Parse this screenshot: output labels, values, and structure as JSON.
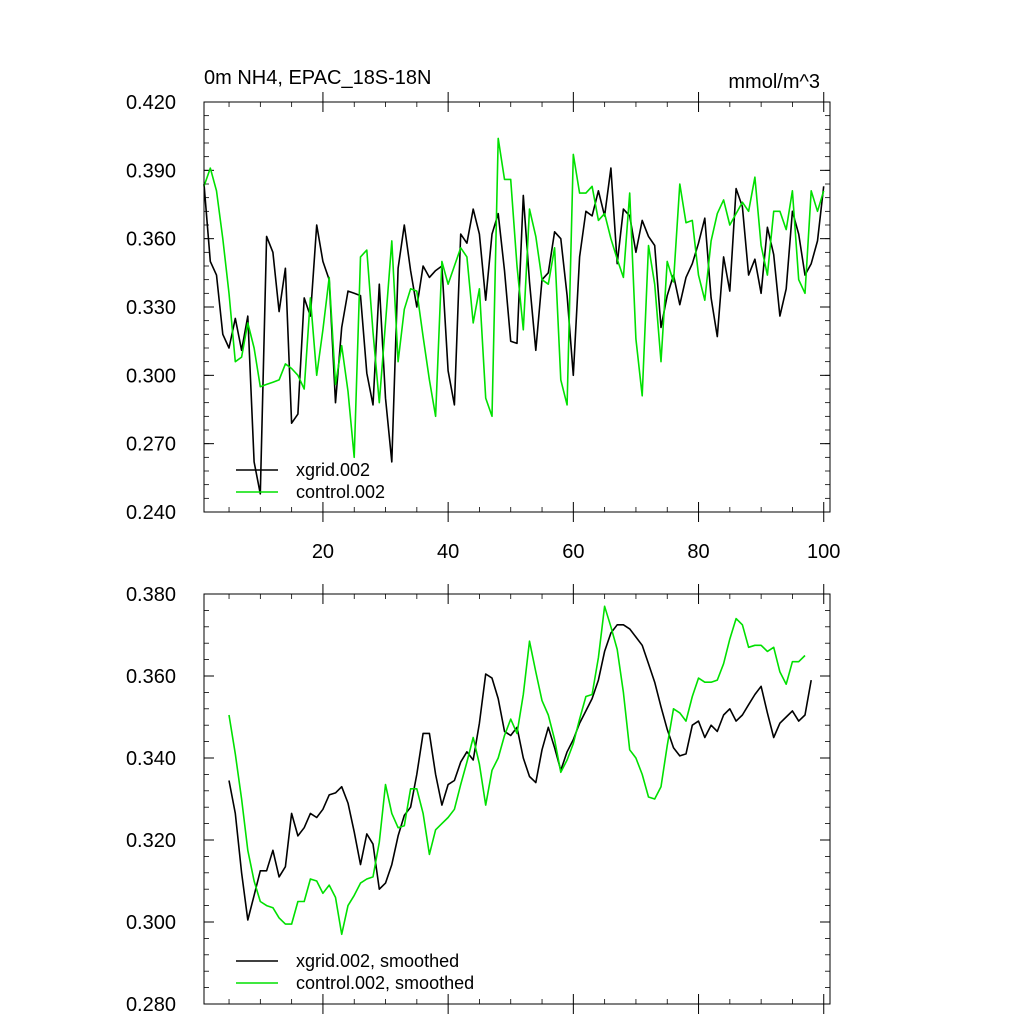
{
  "chart_data": [
    {
      "type": "line",
      "title": "0m NH4, EPAC_18S-18N",
      "units": "mmol/m^3",
      "xlabel": "",
      "ylabel": "",
      "xlim": [
        1,
        101
      ],
      "ylim": [
        0.24,
        0.42
      ],
      "xticks": [
        20,
        40,
        60,
        80,
        100
      ],
      "xtick_labels": [
        "20",
        "40",
        "60",
        "80",
        "100"
      ],
      "yticks": [
        0.24,
        0.27,
        0.3,
        0.33,
        0.36,
        0.39,
        0.42
      ],
      "ytick_labels": [
        "0.240",
        "0.270",
        "0.300",
        "0.330",
        "0.360",
        "0.390",
        "0.420"
      ],
      "legend_position": "bottom-left",
      "series": [
        {
          "name": "xgrid.002",
          "color": "#000000",
          "x_start": 1,
          "values": [
            0.384,
            0.35,
            0.344,
            0.318,
            0.312,
            0.325,
            0.311,
            0.326,
            0.262,
            0.248,
            0.361,
            0.354,
            0.328,
            0.347,
            0.279,
            0.283,
            0.334,
            0.326,
            0.366,
            0.35,
            0.342,
            0.288,
            0.321,
            0.337,
            0.336,
            0.335,
            0.301,
            0.287,
            0.34,
            0.29,
            0.262,
            0.347,
            0.366,
            0.346,
            0.33,
            0.348,
            0.343,
            0.346,
            0.348,
            0.302,
            0.287,
            0.362,
            0.358,
            0.373,
            0.362,
            0.333,
            0.362,
            0.371,
            0.346,
            0.315,
            0.314,
            0.379,
            0.341,
            0.311,
            0.342,
            0.345,
            0.363,
            0.36,
            0.335,
            0.3,
            0.352,
            0.372,
            0.37,
            0.381,
            0.37,
            0.391,
            0.349,
            0.373,
            0.37,
            0.354,
            0.368,
            0.361,
            0.357,
            0.321,
            0.335,
            0.344,
            0.331,
            0.343,
            0.349,
            0.358,
            0.369,
            0.334,
            0.317,
            0.352,
            0.337,
            0.382,
            0.374,
            0.344,
            0.351,
            0.336,
            0.365,
            0.353,
            0.326,
            0.338,
            0.372,
            0.362,
            0.344,
            0.349,
            0.359,
            0.383
          ]
        },
        {
          "name": "control.002",
          "color": "#00e000",
          "x_start": 1,
          "values": [
            0.383,
            0.391,
            0.381,
            0.36,
            0.336,
            0.306,
            0.308,
            0.323,
            0.312,
            0.295,
            0.296,
            0.297,
            0.298,
            0.305,
            0.303,
            0.3,
            0.294,
            0.334,
            0.3,
            0.32,
            0.343,
            0.296,
            0.313,
            0.293,
            0.264,
            0.352,
            0.355,
            0.319,
            0.288,
            0.323,
            0.359,
            0.306,
            0.329,
            0.338,
            0.337,
            0.317,
            0.298,
            0.282,
            0.35,
            0.34,
            0.348,
            0.356,
            0.352,
            0.323,
            0.338,
            0.29,
            0.282,
            0.404,
            0.386,
            0.386,
            0.348,
            0.32,
            0.373,
            0.361,
            0.342,
            0.34,
            0.356,
            0.298,
            0.287,
            0.397,
            0.38,
            0.38,
            0.383,
            0.368,
            0.371,
            0.36,
            0.351,
            0.343,
            0.38,
            0.316,
            0.291,
            0.357,
            0.34,
            0.306,
            0.35,
            0.341,
            0.384,
            0.367,
            0.368,
            0.344,
            0.333,
            0.359,
            0.371,
            0.377,
            0.366,
            0.371,
            0.376,
            0.372,
            0.387,
            0.357,
            0.344,
            0.372,
            0.372,
            0.364,
            0.381,
            0.342,
            0.336,
            0.381,
            0.372,
            0.381
          ]
        }
      ]
    },
    {
      "type": "line",
      "title": "",
      "xlabel": "",
      "ylabel": "",
      "xlim": [
        1,
        101
      ],
      "ylim": [
        0.28,
        0.38
      ],
      "xticks": [
        20,
        40,
        60,
        80,
        100
      ],
      "yticks": [
        0.28,
        0.3,
        0.32,
        0.34,
        0.36,
        0.38
      ],
      "ytick_labels": [
        "0.280",
        "0.300",
        "0.320",
        "0.340",
        "0.360",
        "0.380"
      ],
      "legend_position": "bottom-left",
      "series": [
        {
          "name": "xgrid.002, smoothed",
          "color": "#000000",
          "x_start": 5,
          "values": [
            0.3345,
            0.3265,
            0.312,
            0.3005,
            0.3065,
            0.3125,
            0.3125,
            0.3175,
            0.311,
            0.3135,
            0.3265,
            0.321,
            0.323,
            0.3265,
            0.3255,
            0.3275,
            0.331,
            0.3315,
            0.333,
            0.329,
            0.322,
            0.314,
            0.3215,
            0.319,
            0.308,
            0.3095,
            0.314,
            0.321,
            0.326,
            0.328,
            0.336,
            0.346,
            0.346,
            0.336,
            0.3285,
            0.3335,
            0.3345,
            0.339,
            0.3415,
            0.3395,
            0.3485,
            0.3605,
            0.3595,
            0.3545,
            0.3465,
            0.3455,
            0.3475,
            0.34,
            0.3355,
            0.334,
            0.342,
            0.3475,
            0.3425,
            0.337,
            0.3415,
            0.3445,
            0.3485,
            0.3515,
            0.3545,
            0.359,
            0.366,
            0.3705,
            0.3725,
            0.3725,
            0.3715,
            0.3695,
            0.3675,
            0.363,
            0.3585,
            0.3525,
            0.347,
            0.3425,
            0.3405,
            0.341,
            0.348,
            0.349,
            0.345,
            0.348,
            0.3465,
            0.3505,
            0.352,
            0.349,
            0.3505,
            0.353,
            0.3555,
            0.3575,
            0.351,
            0.345,
            0.3485,
            0.35,
            0.3515,
            0.349,
            0.3505,
            0.359
          ]
        },
        {
          "name": "control.002, smoothed",
          "color": "#00e000",
          "x_start": 5,
          "values": [
            0.3505,
            0.341,
            0.33,
            0.3175,
            0.31,
            0.305,
            0.304,
            0.3035,
            0.301,
            0.2995,
            0.2995,
            0.305,
            0.305,
            0.3105,
            0.31,
            0.307,
            0.309,
            0.306,
            0.297,
            0.304,
            0.3065,
            0.3095,
            0.3105,
            0.311,
            0.3195,
            0.3335,
            0.3265,
            0.323,
            0.3235,
            0.3325,
            0.3325,
            0.3265,
            0.3165,
            0.3225,
            0.324,
            0.3255,
            0.3275,
            0.3335,
            0.339,
            0.345,
            0.3385,
            0.3285,
            0.337,
            0.34,
            0.3455,
            0.3495,
            0.346,
            0.3555,
            0.3685,
            0.361,
            0.354,
            0.3505,
            0.3445,
            0.3365,
            0.3395,
            0.3435,
            0.3495,
            0.355,
            0.3555,
            0.3645,
            0.377,
            0.372,
            0.3665,
            0.356,
            0.342,
            0.34,
            0.336,
            0.3305,
            0.33,
            0.333,
            0.343,
            0.352,
            0.351,
            0.349,
            0.355,
            0.3595,
            0.3585,
            0.3585,
            0.359,
            0.363,
            0.369,
            0.374,
            0.3725,
            0.367,
            0.3675,
            0.3675,
            0.366,
            0.367,
            0.361,
            0.358,
            0.3635,
            0.3635,
            0.365
          ]
        }
      ]
    }
  ]
}
